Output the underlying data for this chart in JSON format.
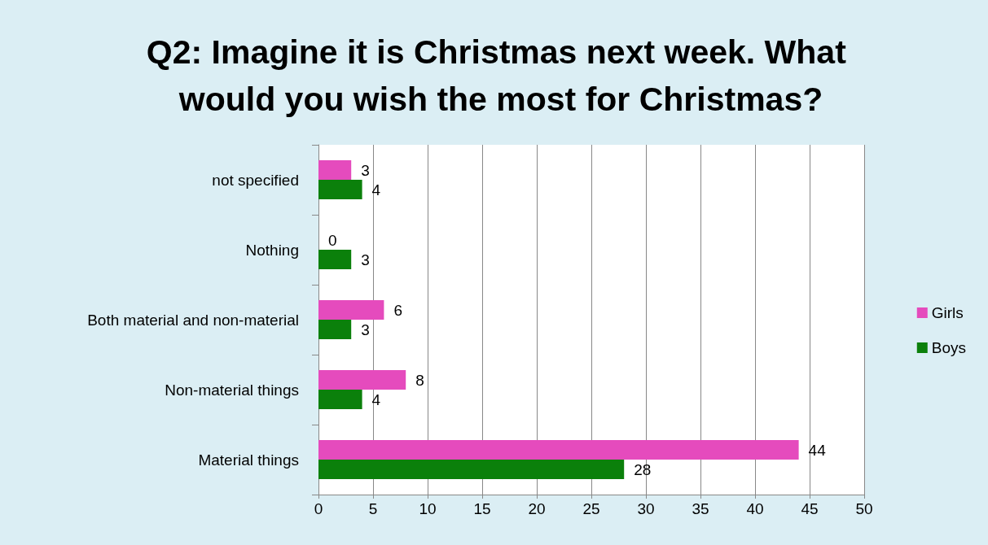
{
  "chart_data": {
    "type": "bar",
    "orientation": "horizontal",
    "title": "Q2: Imagine it is Christmas next week. What would you wish the most for Christmas?",
    "categories": [
      "not specified",
      "Nothing",
      "Both material and non-material",
      "Non-material things",
      "Material things"
    ],
    "series": [
      {
        "name": "Girls",
        "color": "#e54bbd",
        "values": [
          3,
          0,
          6,
          8,
          44
        ]
      },
      {
        "name": "Boys",
        "color": "#0b800b",
        "values": [
          4,
          3,
          3,
          4,
          28
        ]
      }
    ],
    "xlim": [
      0,
      50
    ],
    "xticks": [
      0,
      5,
      10,
      15,
      20,
      25,
      30,
      35,
      40,
      45,
      50
    ],
    "grid": "x",
    "legend": "right",
    "data_labels": true
  }
}
